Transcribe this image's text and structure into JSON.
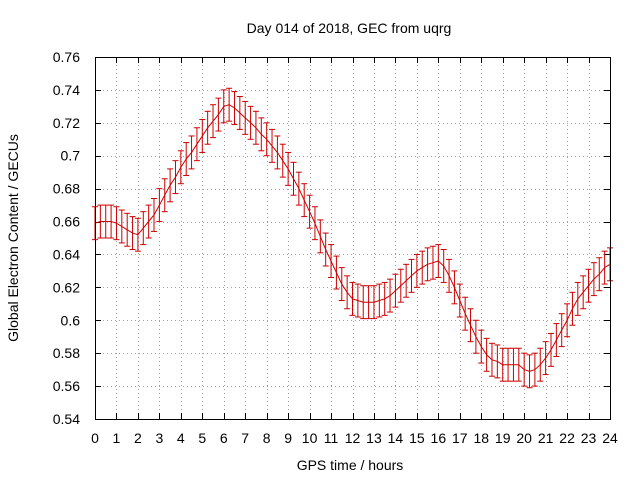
{
  "chart_data": {
    "type": "line",
    "title": "Day 014 of 2018, GEC from uqrg",
    "xlabel": "GPS time / hours",
    "ylabel": "Global Electron Content / GECUs",
    "xlim": [
      0,
      24
    ],
    "ylim": [
      0.54,
      0.76
    ],
    "x_ticks": [
      "0",
      "1",
      "2",
      "3",
      "4",
      "5",
      "6",
      "7",
      "8",
      "9",
      "10",
      "11",
      "12",
      "13",
      "14",
      "15",
      "16",
      "17",
      "18",
      "19",
      "20",
      "21",
      "22",
      "23",
      "24"
    ],
    "y_ticks": [
      "0.54",
      "0.56",
      "0.58",
      "0.6",
      "0.62",
      "0.64",
      "0.66",
      "0.68",
      "0.7",
      "0.72",
      "0.74",
      "0.76"
    ],
    "grid": true,
    "line_color": "#cc0000",
    "error": 0.01,
    "series": [
      {
        "x": [
          0,
          0.25,
          0.5,
          0.75,
          1,
          1.25,
          1.5,
          1.75,
          2,
          2.25,
          2.5,
          2.75,
          3,
          3.25,
          3.5,
          3.75,
          4,
          4.25,
          4.5,
          4.75,
          5,
          5.25,
          5.5,
          5.75,
          6,
          6.25,
          6.5,
          6.75,
          7,
          7.25,
          7.5,
          7.75,
          8,
          8.25,
          8.5,
          8.75,
          9,
          9.25,
          9.5,
          9.75,
          10,
          10.25,
          10.5,
          10.75,
          11,
          11.25,
          11.5,
          11.75,
          12,
          12.25,
          12.5,
          12.75,
          13,
          13.25,
          13.5,
          13.75,
          14,
          14.25,
          14.5,
          14.75,
          15,
          15.25,
          15.5,
          15.75,
          16,
          16.25,
          16.5,
          16.75,
          17,
          17.25,
          17.5,
          17.75,
          18,
          18.25,
          18.5,
          18.75,
          19,
          19.25,
          19.5,
          19.75,
          20,
          20.25,
          20.5,
          20.75,
          21,
          21.25,
          21.5,
          21.75,
          22,
          22.25,
          22.5,
          22.75,
          23,
          23.25,
          23.5,
          23.75,
          24
        ],
        "y": [
          0.659,
          0.66,
          0.66,
          0.66,
          0.659,
          0.657,
          0.655,
          0.653,
          0.652,
          0.656,
          0.66,
          0.664,
          0.67,
          0.676,
          0.682,
          0.687,
          0.693,
          0.698,
          0.702,
          0.707,
          0.712,
          0.717,
          0.721,
          0.725,
          0.73,
          0.731,
          0.729,
          0.726,
          0.723,
          0.72,
          0.717,
          0.713,
          0.71,
          0.706,
          0.702,
          0.697,
          0.692,
          0.686,
          0.68,
          0.673,
          0.666,
          0.659,
          0.651,
          0.643,
          0.636,
          0.629,
          0.622,
          0.617,
          0.613,
          0.612,
          0.611,
          0.611,
          0.611,
          0.612,
          0.613,
          0.615,
          0.618,
          0.621,
          0.624,
          0.627,
          0.63,
          0.632,
          0.634,
          0.635,
          0.636,
          0.633,
          0.627,
          0.62,
          0.612,
          0.604,
          0.597,
          0.59,
          0.584,
          0.579,
          0.576,
          0.575,
          0.573,
          0.573,
          0.573,
          0.573,
          0.57,
          0.569,
          0.57,
          0.573,
          0.577,
          0.582,
          0.588,
          0.594,
          0.6,
          0.607,
          0.613,
          0.617,
          0.621,
          0.625,
          0.628,
          0.632,
          0.634
        ]
      }
    ]
  }
}
